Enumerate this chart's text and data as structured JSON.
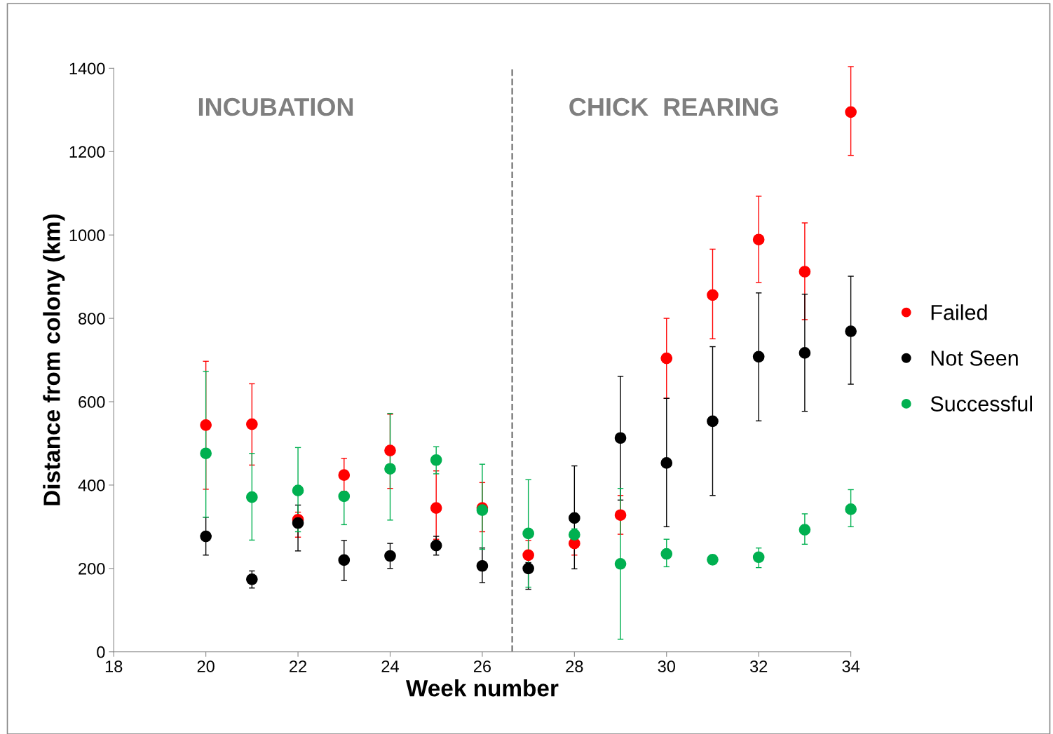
{
  "chart_data": {
    "type": "scatter",
    "xlabel": "Week number",
    "ylabel": "Distance from colony (km)",
    "x": [
      20,
      21,
      22,
      23,
      24,
      25,
      26,
      27,
      28,
      29,
      30,
      31,
      32,
      33,
      34
    ],
    "xlim": [
      18,
      34
    ],
    "xticks": [
      18,
      20,
      22,
      24,
      26,
      28,
      30,
      32,
      34
    ],
    "ylim": [
      0,
      1400
    ],
    "yticks": [
      0,
      200,
      400,
      600,
      800,
      1000,
      1200,
      1400
    ],
    "grid": false,
    "legend": "right",
    "marker": "circle",
    "annotations": [
      "INCUBATION",
      "CHICK  REARING"
    ],
    "ref_lines": [
      {
        "axis": "x",
        "value": 26.65,
        "label": null,
        "color": "#808080",
        "line_style": "dashed"
      }
    ],
    "series": [
      {
        "name": "Failed",
        "color": "#ff0000",
        "values": [
          544,
          546,
          317,
          424,
          483,
          345,
          345,
          232,
          260,
          328,
          704,
          856,
          989,
          912,
          1295
        ],
        "errors": [
          [
            390,
            697
          ],
          [
            448,
            643
          ],
          [
            275,
            335
          ],
          [
            385,
            464
          ],
          [
            392,
            570
          ],
          [
            270,
            434
          ],
          [
            288,
            406
          ],
          [
            232,
            267
          ],
          [
            232,
            260
          ],
          [
            282,
            375
          ],
          [
            608,
            800
          ],
          [
            751,
            966
          ],
          [
            886,
            1093
          ],
          [
            797,
            1029
          ],
          [
            1191,
            1404
          ]
        ]
      },
      {
        "name": "Not Seen",
        "color": "#000000",
        "values": [
          277,
          174,
          309,
          220,
          230,
          255,
          206,
          200,
          321,
          513,
          453,
          553,
          708,
          717,
          769
        ],
        "errors": [
          [
            232,
            323
          ],
          [
            153,
            194
          ],
          [
            242,
            352
          ],
          [
            171,
            267
          ],
          [
            200,
            260
          ],
          [
            232,
            277
          ],
          [
            166,
            249
          ],
          [
            150,
            214
          ],
          [
            199,
            446
          ],
          [
            364,
            661
          ],
          [
            300,
            608
          ],
          [
            375,
            732
          ],
          [
            554,
            861
          ],
          [
            577,
            858
          ],
          [
            642,
            901
          ]
        ]
      },
      {
        "name": "Successful",
        "color": "#00b050",
        "values": [
          476,
          371,
          387,
          373,
          439,
          460,
          340,
          284,
          281,
          211,
          235,
          221,
          227,
          293,
          342
        ],
        "errors": [
          [
            323,
            673
          ],
          [
            268,
            476
          ],
          [
            288,
            490
          ],
          [
            305,
            373
          ],
          [
            316,
            572
          ],
          [
            427,
            492
          ],
          [
            246,
            450
          ],
          [
            155,
            413
          ],
          [
            251,
            295
          ],
          [
            30,
            392
          ],
          [
            204,
            270
          ],
          [
            211,
            232
          ],
          [
            202,
            249
          ],
          [
            258,
            331
          ],
          [
            300,
            389
          ]
        ]
      }
    ]
  }
}
